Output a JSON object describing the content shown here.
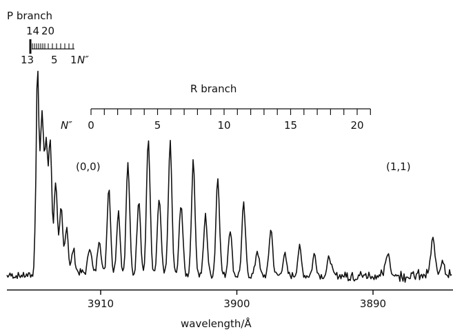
{
  "chart_data": {
    "type": "line",
    "xlabel": "wavelength/Å",
    "ylabel": "",
    "x_reversed": true,
    "xlim": [
      3915.8,
      3882.3
    ],
    "x_ticks": [
      3910,
      3900,
      3890
    ],
    "y_axis_shown": false,
    "grid": false,
    "annotations": {
      "p_branch_title": "P branch",
      "p_top_numbers": [
        "14",
        "20"
      ],
      "p_bottom_numbers": [
        "13",
        "5",
        "1"
      ],
      "p_n_label": "N″",
      "r_branch_title": "R branch",
      "r_n_label": "N″",
      "r_numbers": [
        "0",
        "5",
        "10",
        "15",
        "20"
      ],
      "band_00": "(0,0)",
      "band_11": "(1,1)"
    },
    "r_branch_lines": [
      {
        "N": 0,
        "wavelength": 3910.8,
        "intensity": 0.13
      },
      {
        "N": 1,
        "wavelength": 3910.1,
        "intensity": 0.17
      },
      {
        "N": 2,
        "wavelength": 3909.4,
        "intensity": 0.41
      },
      {
        "N": 3,
        "wavelength": 3908.7,
        "intensity": 0.3
      },
      {
        "N": 4,
        "wavelength": 3908.0,
        "intensity": 0.52
      },
      {
        "N": 5,
        "wavelength": 3907.2,
        "intensity": 0.36
      },
      {
        "N": 6,
        "wavelength": 3906.5,
        "intensity": 0.64
      },
      {
        "N": 7,
        "wavelength": 3905.7,
        "intensity": 0.36
      },
      {
        "N": 8,
        "wavelength": 3904.9,
        "intensity": 0.62
      },
      {
        "N": 9,
        "wavelength": 3904.1,
        "intensity": 0.34
      },
      {
        "N": 10,
        "wavelength": 3903.2,
        "intensity": 0.53
      },
      {
        "N": 11,
        "wavelength": 3902.3,
        "intensity": 0.28
      },
      {
        "N": 12,
        "wavelength": 3901.4,
        "intensity": 0.46
      },
      {
        "N": 13,
        "wavelength": 3900.5,
        "intensity": 0.22
      },
      {
        "N": 14,
        "wavelength": 3899.5,
        "intensity": 0.33
      },
      {
        "N": 15,
        "wavelength": 3898.5,
        "intensity": 0.12
      },
      {
        "N": 16,
        "wavelength": 3897.5,
        "intensity": 0.22
      },
      {
        "N": 17,
        "wavelength": 3896.5,
        "intensity": 0.1
      },
      {
        "N": 18,
        "wavelength": 3895.4,
        "intensity": 0.13
      },
      {
        "N": 19,
        "wavelength": 3894.3,
        "intensity": 0.1
      },
      {
        "N": 20,
        "wavelength": 3893.2,
        "intensity": 0.09
      }
    ],
    "p_branch_head": {
      "wavelength": 3914.7,
      "intensity": 0.95
    },
    "p_branch_lines": [
      {
        "wavelength": 3914.3,
        "intensity": 0.58
      },
      {
        "wavelength": 3914.0,
        "intensity": 0.5
      },
      {
        "wavelength": 3913.7,
        "intensity": 0.53
      },
      {
        "wavelength": 3913.3,
        "intensity": 0.38
      },
      {
        "wavelength": 3912.9,
        "intensity": 0.26
      },
      {
        "wavelength": 3912.5,
        "intensity": 0.2
      },
      {
        "wavelength": 3912.0,
        "intensity": 0.1
      }
    ],
    "band_11_features": [
      {
        "wavelength": 3888.9,
        "intensity": 0.1
      },
      {
        "wavelength": 3885.6,
        "intensity": 0.16
      },
      {
        "wavelength": 3884.9,
        "intensity": 0.08
      },
      {
        "wavelength": 3883.9,
        "intensity": 0.09
      }
    ]
  }
}
